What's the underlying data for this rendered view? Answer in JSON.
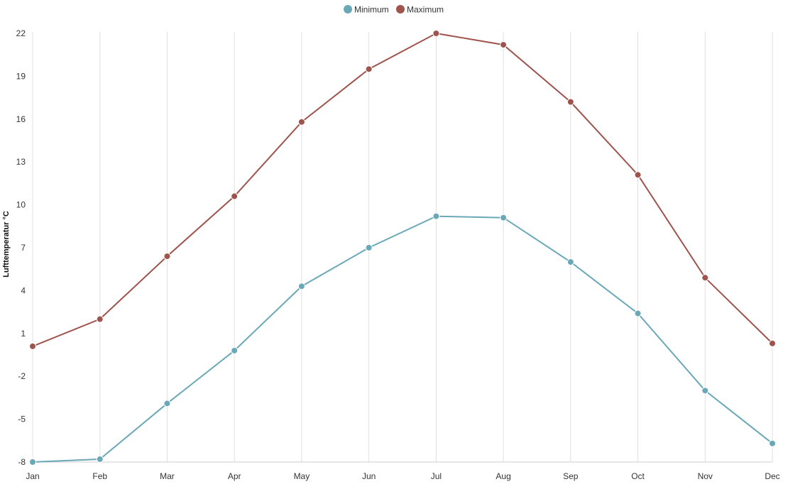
{
  "chart_data": {
    "type": "line",
    "title": "",
    "xlabel": "",
    "ylabel": "Lufttemperatur °C",
    "categories": [
      "Jan",
      "Feb",
      "Mar",
      "Apr",
      "May",
      "Jun",
      "Jul",
      "Aug",
      "Sep",
      "Oct",
      "Nov",
      "Dec"
    ],
    "y_ticks": [
      "-8",
      "-5",
      "-2",
      "1",
      "4",
      "7",
      "10",
      "13",
      "16",
      "19",
      "22"
    ],
    "ylim": [
      -8,
      22
    ],
    "grid": "vertical",
    "legend_position": "top-center",
    "series": [
      {
        "name": "Minimum",
        "color": "#6aa8b8",
        "values": [
          -8.0,
          -7.8,
          -3.9,
          -0.2,
          4.3,
          7.0,
          9.2,
          9.1,
          6.0,
          2.4,
          -3.0,
          -6.7
        ]
      },
      {
        "name": "Maximum",
        "color": "#9e544c",
        "values": [
          0.1,
          2.0,
          6.4,
          10.6,
          15.8,
          19.5,
          22.0,
          21.2,
          17.2,
          12.1,
          4.9,
          0.3
        ]
      }
    ]
  }
}
